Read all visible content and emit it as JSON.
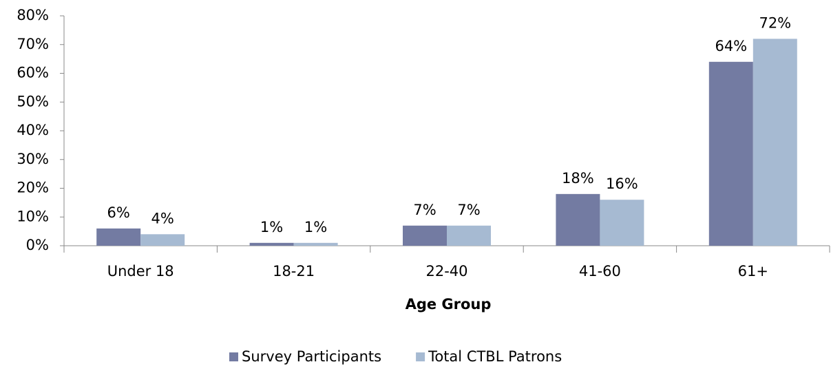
{
  "chart_data": {
    "type": "bar",
    "x_label": "Age Group",
    "categories": [
      "Under 18",
      "18-21",
      "22-40",
      "41-60",
      "61+"
    ],
    "series": [
      {
        "name": "Survey Participants",
        "color": "#737ba2",
        "values": [
          6,
          1,
          7,
          18,
          64
        ],
        "value_labels": [
          "6%",
          "1%",
          "7%",
          "18%",
          "64%"
        ]
      },
      {
        "name": "Total CTBL Patrons",
        "color": "#a6bad2",
        "values": [
          4,
          1,
          7,
          16,
          72
        ],
        "value_labels": [
          "4%",
          "1%",
          "7%",
          "16%",
          "72%"
        ]
      }
    ],
    "ylim": [
      0,
      80
    ],
    "yticks": [
      {
        "value": 0,
        "label": "0%"
      },
      {
        "value": 10,
        "label": "10%"
      },
      {
        "value": 20,
        "label": "20%"
      },
      {
        "value": 30,
        "label": "30%"
      },
      {
        "value": 40,
        "label": "40%"
      },
      {
        "value": 50,
        "label": "50%"
      },
      {
        "value": 60,
        "label": "60%"
      },
      {
        "value": 70,
        "label": "70%"
      },
      {
        "value": 80,
        "label": "80%"
      }
    ],
    "grid": false,
    "legend": "bottom"
  }
}
